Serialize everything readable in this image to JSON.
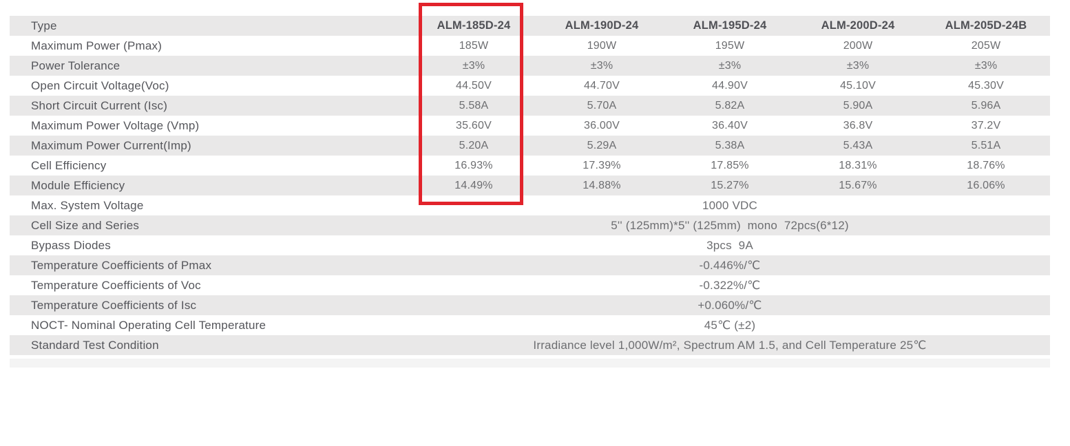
{
  "colors": {
    "highlight": "#E2232B",
    "row_band": "#E9E8E8",
    "label_text": "#55565B",
    "header_text": "#4F5055",
    "value_text": "#6D6E71"
  },
  "table": {
    "header": {
      "label": "Type",
      "columns": [
        "ALM-185D-24",
        "ALM-190D-24",
        "ALM-195D-24",
        "ALM-200D-24",
        "ALM-205D-24B"
      ]
    },
    "highlighted_column": "ALM-185D-24",
    "spec_rows": [
      {
        "label": "Maximum Power (Pmax)",
        "values": [
          "185W",
          "190W",
          "195W",
          "200W",
          "205W"
        ]
      },
      {
        "label": "Power Tolerance",
        "values": [
          "±3%",
          "±3%",
          "±3%",
          "±3%",
          "±3%"
        ]
      },
      {
        "label": "Open Circuit Voltage(Voc)",
        "values": [
          "44.50V",
          "44.70V",
          "44.90V",
          "45.10V",
          "45.30V"
        ]
      },
      {
        "label": "Short Circuit Current (Isc)",
        "values": [
          "5.58A",
          "5.70A",
          "5.82A",
          "5.90A",
          "5.96A"
        ]
      },
      {
        "label": "Maximum Power Voltage (Vmp)",
        "values": [
          "35.60V",
          "36.00V",
          "36.40V",
          "36.8V",
          "37.2V"
        ]
      },
      {
        "label": "Maximum Power Current(Imp)",
        "values": [
          "5.20A",
          "5.29A",
          "5.38A",
          "5.43A",
          "5.51A"
        ]
      },
      {
        "label": "Cell Efficiency",
        "values": [
          "16.93%",
          "17.39%",
          "17.85%",
          "18.31%",
          "18.76%"
        ]
      },
      {
        "label": "Module Efficiency",
        "values": [
          "14.49%",
          "14.88%",
          "15.27%",
          "15.67%",
          "16.06%"
        ]
      }
    ],
    "merged_rows": [
      {
        "label": "Max. System Voltage",
        "value": "1000 VDC"
      },
      {
        "label": "Cell Size and Series",
        "value": "5'' (125mm)*5'' (125mm)  mono  72pcs(6*12)"
      },
      {
        "label": "Bypass Diodes",
        "value": "3pcs  9A"
      },
      {
        "label": "Temperature Coefficients of Pmax",
        "value": "-0.446%/℃"
      },
      {
        "label": "Temperature Coefficients of Voc",
        "value": "-0.322%/℃"
      },
      {
        "label": "Temperature Coefficients of Isc",
        "value": "+0.060%/℃"
      },
      {
        "label": "NOCT- Nominal Operating Cell Temperature",
        "value": "45℃ (±2)"
      },
      {
        "label": "Standard Test Condition",
        "value": "Irradiance level 1,000W/m², Spectrum AM 1.5, and Cell Temperature 25℃"
      }
    ]
  }
}
